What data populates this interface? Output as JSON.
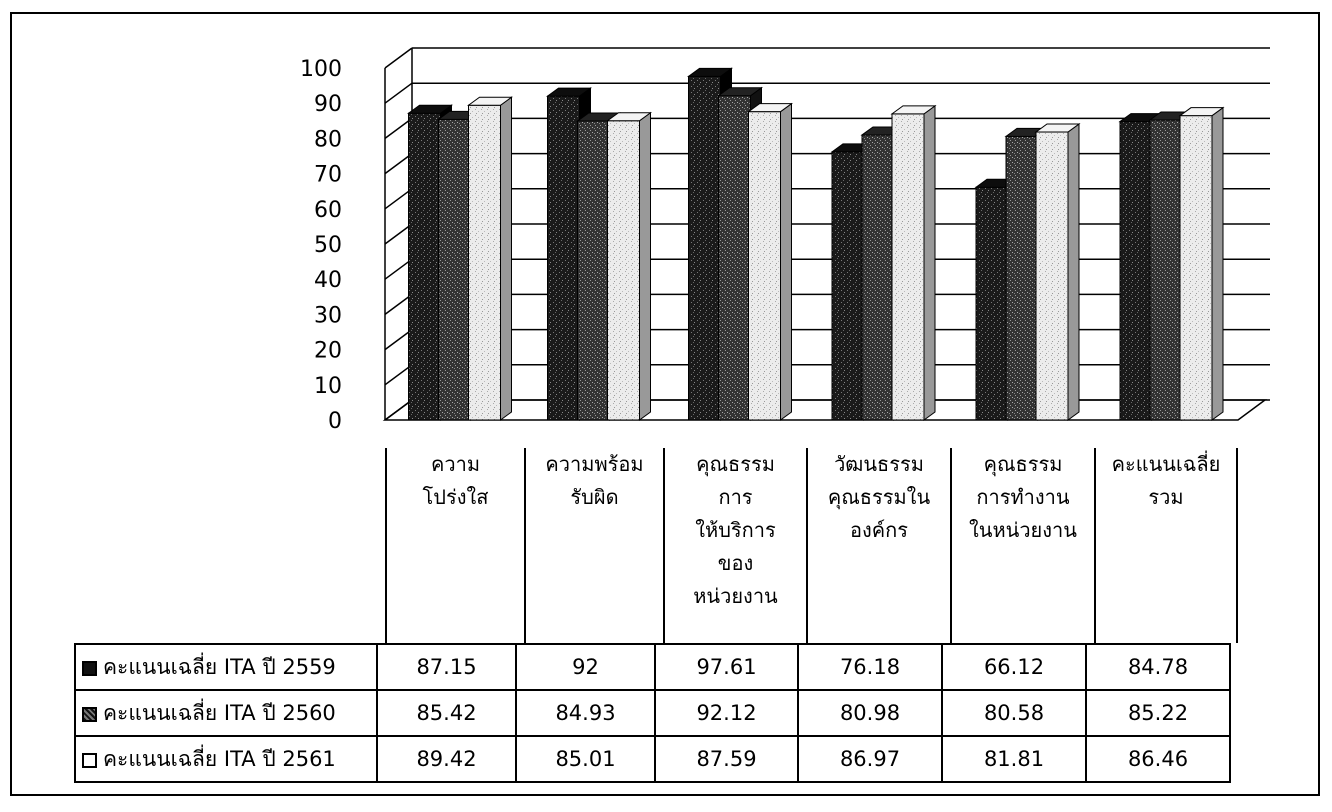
{
  "chart_data": {
    "type": "bar",
    "title": "",
    "xlabel": "",
    "ylabel": "",
    "ylim": [
      0,
      100
    ],
    "yticks": [
      0,
      10,
      20,
      30,
      40,
      50,
      60,
      70,
      80,
      90,
      100
    ],
    "grid": true,
    "legend": "table",
    "categories": [
      "ความ\nโปร่งใส",
      "ความพร้อม\nรับผิด",
      "คุณธรรม\nการ\nให้บริการ\nของ\nหน่วยงาน",
      "วัฒนธรรม\nคุณธรรมใน\nองค์กร",
      "คุณธรรม\nการทำงาน\nในหน่วยงาน",
      "คะแนนเฉลี่ย\nรวม"
    ],
    "series": [
      {
        "name": "คะแนนเฉลี่ย ITA ปี 2559",
        "values": [
          87.15,
          92,
          97.61,
          76.18,
          66.12,
          84.78
        ],
        "color": "#1a1a1a"
      },
      {
        "name": "คะแนนเฉลี่ย ITA ปี 2560",
        "values": [
          85.42,
          84.93,
          92.12,
          80.98,
          80.58,
          85.22
        ],
        "color": "#3a3a3a"
      },
      {
        "name": "คะแนนเฉลี่ย ITA ปี 2561",
        "values": [
          89.42,
          85.01,
          87.59,
          86.97,
          81.81,
          86.46
        ],
        "color": "#e6e6e6"
      }
    ]
  }
}
